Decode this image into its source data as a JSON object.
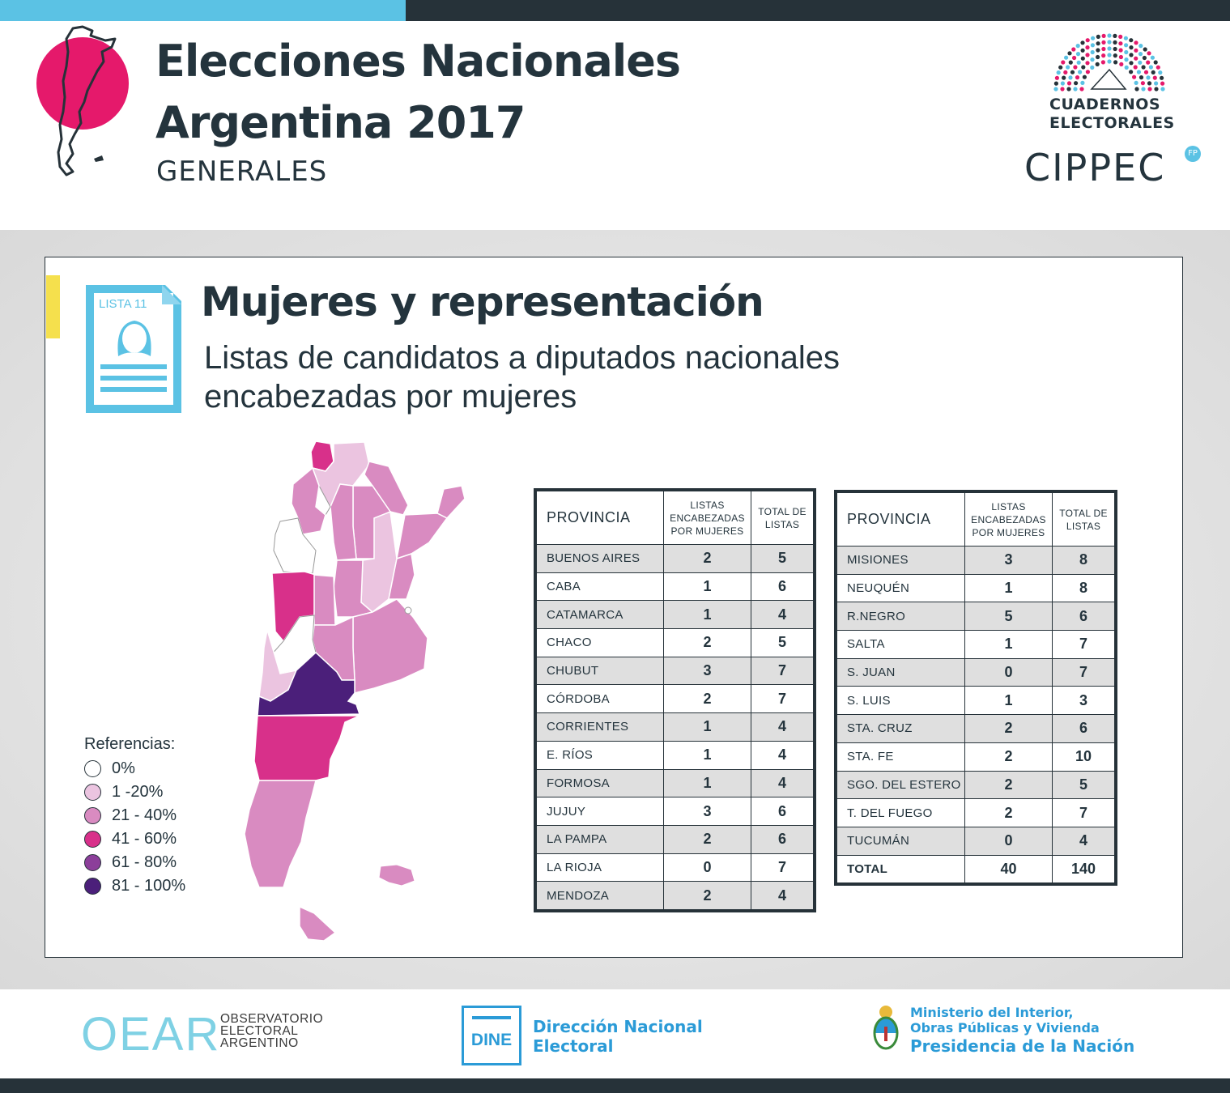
{
  "header": {
    "title_line1": "Elecciones Nacionales",
    "title_line2": "Argentina 2017",
    "subtitle": "GENERALES",
    "cuadernos_line1": "CUADERNOS",
    "cuadernos_line2": "ELECTORALES",
    "cippec": "CIPPEC",
    "cippec_badge": "FP"
  },
  "section": {
    "title": "Mujeres y representación",
    "subtitle_line1": "Listas de candidatos a diputados nacionales",
    "subtitle_line2": "encabezadas por mujeres",
    "doc_label": "LISTA 11"
  },
  "legend": {
    "title": "Referencias:",
    "items": [
      {
        "label": "0%",
        "color": "#ffffff"
      },
      {
        "label": "1 -20%",
        "color": "#ebc4e0"
      },
      {
        "label": "21 - 40%",
        "color": "#d98bc1"
      },
      {
        "label": "41 - 60%",
        "color": "#d8308a"
      },
      {
        "label": "61 - 80%",
        "color": "#8c3f9a"
      },
      {
        "label": "81 - 100%",
        "color": "#4b1f7a"
      }
    ]
  },
  "table_headers": {
    "provincia": "PROVINCIA",
    "listas_l1": "LISTAS",
    "listas_l2": "ENCABEZADAS",
    "listas_l3": "POR MUJERES",
    "total_l1": "TOTAL DE",
    "total_l2": "LISTAS"
  },
  "table_left": [
    {
      "provincia": "BUENOS AIRES",
      "mujeres": "2",
      "total": "5"
    },
    {
      "provincia": "CABA",
      "mujeres": "1",
      "total": "6"
    },
    {
      "provincia": "CATAMARCA",
      "mujeres": "1",
      "total": "4"
    },
    {
      "provincia": "CHACO",
      "mujeres": "2",
      "total": "5"
    },
    {
      "provincia": "CHUBUT",
      "mujeres": "3",
      "total": "7"
    },
    {
      "provincia": "CÓRDOBA",
      "mujeres": "2",
      "total": "7"
    },
    {
      "provincia": "CORRIENTES",
      "mujeres": "1",
      "total": "4"
    },
    {
      "provincia": "E. RÍOS",
      "mujeres": "1",
      "total": "4"
    },
    {
      "provincia": "FORMOSA",
      "mujeres": "1",
      "total": "4"
    },
    {
      "provincia": "JUJUY",
      "mujeres": "3",
      "total": "6"
    },
    {
      "provincia": "LA PAMPA",
      "mujeres": "2",
      "total": "6"
    },
    {
      "provincia": "LA RIOJA",
      "mujeres": "0",
      "total": "7"
    },
    {
      "provincia": "MENDOZA",
      "mujeres": "2",
      "total": "4"
    }
  ],
  "table_right": [
    {
      "provincia": "MISIONES",
      "mujeres": "3",
      "total": "8"
    },
    {
      "provincia": "NEUQUÉN",
      "mujeres": "1",
      "total": "8"
    },
    {
      "provincia": "R.NEGRO",
      "mujeres": "5",
      "total": "6"
    },
    {
      "provincia": "SALTA",
      "mujeres": "1",
      "total": "7"
    },
    {
      "provincia": "S. JUAN",
      "mujeres": "0",
      "total": "7"
    },
    {
      "provincia": "S. LUIS",
      "mujeres": "1",
      "total": "3"
    },
    {
      "provincia": "STA. CRUZ",
      "mujeres": "2",
      "total": "6"
    },
    {
      "provincia": "STA. FE",
      "mujeres": "2",
      "total": "10"
    },
    {
      "provincia": "SGO. DEL ESTERO",
      "mujeres": "2",
      "total": "5"
    },
    {
      "provincia": "T. DEL FUEGO",
      "mujeres": "2",
      "total": "7"
    },
    {
      "provincia": "TUCUMÁN",
      "mujeres": "0",
      "total": "4"
    }
  ],
  "table_total": {
    "provincia": "TOTAL",
    "mujeres": "40",
    "total": "140"
  },
  "footer": {
    "oear_logo": "OEAR",
    "oear_l1": "OBSERVATORIO",
    "oear_l2": "ELECTORAL",
    "oear_l3": "ARGENTINO",
    "dine_logo": "DINE",
    "dine_l1": "Dirección Nacional",
    "dine_l2": "Electoral",
    "min_l1": "Ministerio del Interior,",
    "min_l2": "Obras Públicas y Vivienda",
    "min_l3": "Presidencia de la Nación"
  }
}
